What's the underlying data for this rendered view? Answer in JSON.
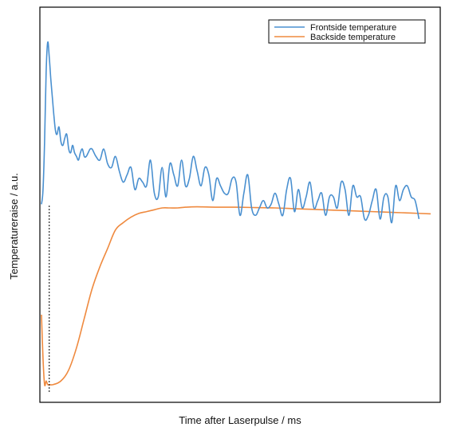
{
  "chart_data": {
    "type": "line",
    "title": "",
    "xlabel": "Time after Laserpulse / ms",
    "ylabel": "Temperatureraise / a.u.",
    "x_ticks_shown": false,
    "y_ticks_shown": false,
    "grid": false,
    "legend_position": "top-right",
    "xlim": [
      0,
      100
    ],
    "ylim": [
      0,
      100
    ],
    "series": [
      {
        "name": "Frontside temperature",
        "color": "#4a90d0",
        "x": [
          0,
          0.4,
          0.8,
          1.2,
          1.6,
          2.0,
          2.4,
          2.8,
          3.2,
          3.6,
          4.0,
          4.5,
          5.0,
          5.5,
          6.0,
          6.5,
          7.0,
          7.5,
          8.0,
          8.5,
          9.0,
          9.5,
          10.0,
          10.5,
          11.0,
          11.5,
          12.0,
          12.5,
          13.0,
          13.5,
          14.0,
          15.0,
          16.0,
          17.0,
          18.0,
          19.0,
          20.0,
          21.0,
          22.0,
          23.0,
          24.0,
          25.0,
          26.0,
          27.0,
          28.0,
          29.0,
          30.0,
          31.0,
          32.0,
          33.0,
          34.0,
          35.0,
          36.0,
          37.0,
          38.0,
          39.0,
          40.0,
          41.0,
          42.0,
          43.0,
          44.0,
          45.0,
          46.0,
          47.0,
          48.0,
          49.0,
          50.0,
          51.0,
          52.0,
          53.0,
          54.0,
          55.0,
          56.0,
          57.0,
          58.0,
          59.0,
          60.0,
          61.0,
          62.0,
          63.0,
          64.0,
          65.0,
          66.0,
          67.0,
          68.0,
          69.0,
          70.0,
          71.0,
          72.0,
          73.0,
          74.0,
          75.0,
          76.0,
          77.0,
          78.0,
          79.0,
          80.0,
          81.0,
          82.0,
          83.0,
          84.0,
          85.0,
          86.0,
          87.0,
          88.0,
          89.0,
          90.0,
          91.0,
          92.0,
          93.0,
          94.0,
          95.0,
          96.0,
          97.0
        ],
        "y": [
          51,
          55,
          68,
          87,
          95,
          91,
          85,
          80,
          75,
          71,
          70,
          72,
          68,
          67,
          69,
          70,
          66,
          65,
          67,
          65,
          64,
          63,
          65,
          66,
          64,
          64,
          65,
          66,
          66,
          65,
          64,
          63,
          66,
          62,
          61,
          64,
          60,
          57,
          59,
          61,
          55,
          58,
          57,
          56,
          63,
          54,
          53,
          61,
          53,
          62,
          59,
          56,
          63,
          56,
          58,
          64,
          60,
          56,
          61,
          59,
          52,
          58,
          56,
          54,
          54,
          58,
          57,
          48,
          54,
          59,
          50,
          48,
          50,
          52,
          50,
          51,
          54,
          51,
          48,
          55,
          58,
          49,
          55,
          50,
          53,
          57,
          50,
          52,
          54,
          48,
          53,
          53,
          50,
          57,
          55,
          48,
          56,
          53,
          53,
          47,
          48,
          52,
          55,
          47,
          53,
          53,
          46,
          56,
          52,
          55,
          56,
          53,
          52,
          47
        ],
        "y_note": ""
      },
      {
        "name": "Backside temperature",
        "color": "#ef8a3f",
        "x": [
          0,
          0.4,
          0.8,
          1.2,
          1.6,
          2.0,
          3,
          5,
          7,
          9,
          11,
          13,
          15,
          17,
          19,
          21,
          23,
          25,
          27,
          29,
          31,
          33,
          35,
          37,
          40,
          45,
          50,
          55,
          60,
          65,
          70,
          75,
          80,
          85,
          90,
          95,
          100
        ],
        "y": [
          21,
          9,
          2,
          3,
          2,
          2,
          2,
          3,
          6,
          12,
          20,
          28,
          34,
          39,
          44,
          46,
          47.5,
          48.5,
          49,
          49.5,
          50,
          50,
          50,
          50.2,
          50.3,
          50.2,
          50.2,
          50.1,
          50,
          49.8,
          49.6,
          49.4,
          49.2,
          49,
          48.8,
          48.6,
          48.4
        ]
      }
    ],
    "annotations": [
      {
        "type": "dashed-vertical-line",
        "x": 2.0,
        "y_from": 0,
        "y_to": 51
      }
    ]
  }
}
